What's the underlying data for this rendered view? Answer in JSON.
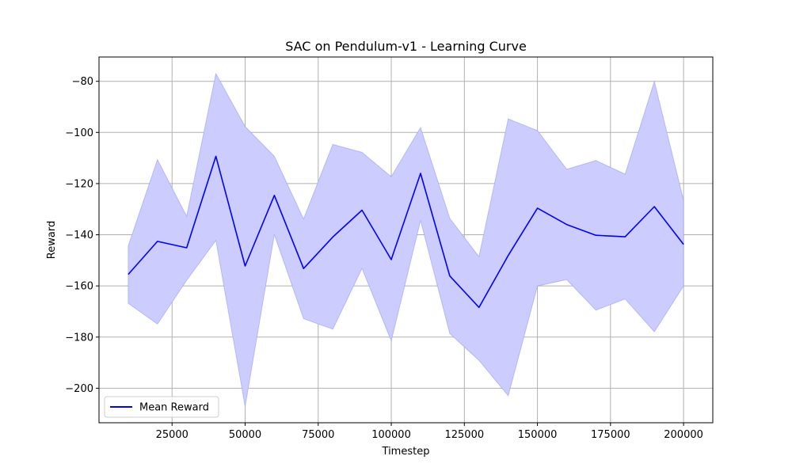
{
  "chart_data": {
    "type": "line",
    "title": "SAC on Pendulum-v1 - Learning Curve",
    "xlabel": "Timestep",
    "ylabel": "Reward",
    "xlim": [
      0,
      210000
    ],
    "ylim": [
      -213.5,
      -70.5
    ],
    "xticks": [
      25000,
      50000,
      75000,
      100000,
      125000,
      150000,
      175000,
      200000
    ],
    "yticks": [
      -200,
      -180,
      -160,
      -140,
      -120,
      -100,
      -80
    ],
    "ytick_labels": [
      "−200",
      "−180",
      "−160",
      "−140",
      "−120",
      "−100",
      "−80"
    ],
    "grid": true,
    "legend_position": "lower-left",
    "series": [
      {
        "name": "Mean Reward",
        "color": "#0000ff",
        "x": [
          10000,
          20000,
          30000,
          40000,
          50000,
          60000,
          70000,
          80000,
          90000,
          100000,
          110000,
          120000,
          130000,
          140000,
          150000,
          160000,
          170000,
          180000,
          190000,
          200000
        ],
        "y": [
          -155.5,
          -142.6,
          -145.1,
          -109.3,
          -152.2,
          -124.6,
          -153.2,
          -140.9,
          -130.4,
          -149.7,
          -116.0,
          -156.1,
          -168.4,
          -148.1,
          -129.6,
          -136.0,
          -140.2,
          -140.8,
          -129.0,
          -143.8
        ],
        "upper": [
          -144.4,
          -110.6,
          -132.8,
          -77.0,
          -97.7,
          -109.3,
          -133.9,
          -104.7,
          -107.8,
          -117.3,
          -98.1,
          -133.6,
          -148.6,
          -94.7,
          -99.3,
          -114.4,
          -111.0,
          -116.3,
          -80.1,
          -126.6
        ],
        "lower": [
          -166.8,
          -174.9,
          -157.8,
          -142.2,
          -207.1,
          -139.9,
          -172.8,
          -176.9,
          -153.1,
          -181.5,
          -134.4,
          -178.6,
          -189.1,
          -202.9,
          -160.0,
          -157.5,
          -169.5,
          -165.1,
          -177.9,
          -160.0
        ],
        "band_color": "#ccccff"
      }
    ]
  }
}
